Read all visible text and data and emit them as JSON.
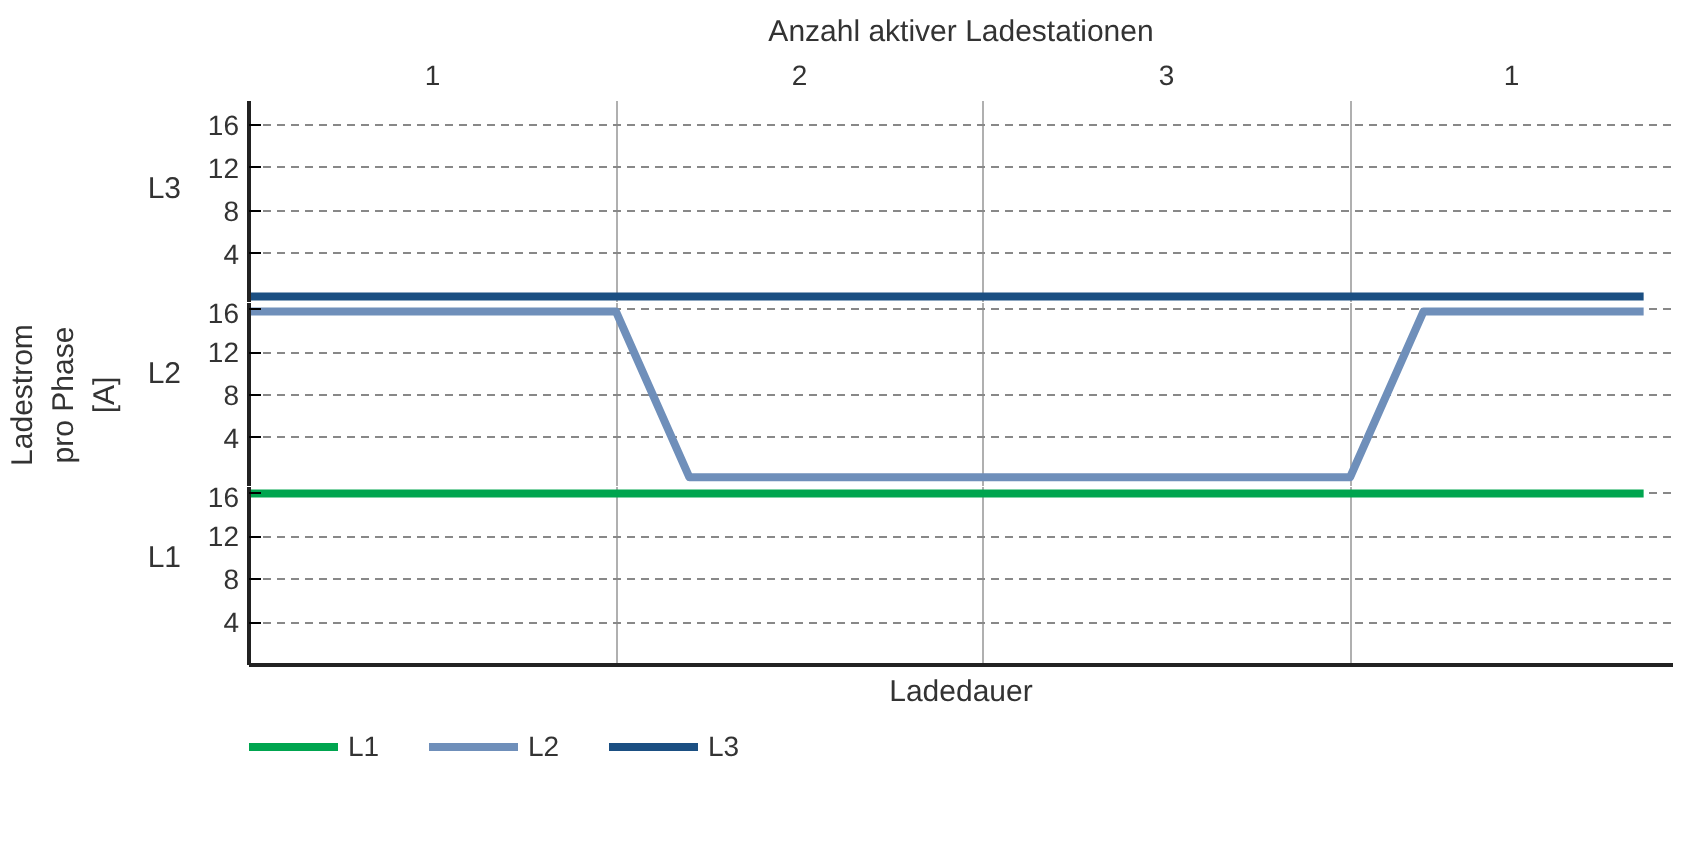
{
  "chart_data": [
    {
      "type": "line",
      "title": "Anzahl aktiver Ladestationen",
      "ylabel": "L3",
      "annotations": [
        "1",
        "2",
        "3",
        "1"
      ],
      "categories": [
        null,
        null,
        null,
        null,
        null,
        null,
        null,
        null,
        null,
        null,
        null,
        null,
        null,
        null,
        null,
        null,
        null,
        null,
        null,
        null
      ],
      "ylim": [
        -0.6,
        18.2
      ],
      "yticks": [
        4,
        8,
        12,
        16
      ],
      "tick_labels": "y",
      "grid": true,
      "line_style": "solid",
      "series": [
        {
          "name": "L3",
          "color": "#1b4f82",
          "values": [
            0,
            0,
            0,
            0,
            0,
            0,
            0,
            0,
            0,
            0,
            0,
            0,
            0,
            0,
            0,
            0,
            0,
            0,
            0,
            0
          ]
        }
      ]
    },
    {
      "type": "line",
      "ylabel": "L2",
      "annotations": [
        "Ladestrom pro Phase [A]"
      ],
      "categories": [
        null,
        null,
        null,
        null,
        null,
        null,
        null,
        null,
        null,
        null,
        null,
        null,
        null,
        null,
        null,
        null,
        null,
        null,
        null,
        null
      ],
      "ylim": [
        -0.6,
        16.6
      ],
      "yticks": [
        4,
        8,
        12,
        16
      ],
      "tick_labels": "y",
      "grid": true,
      "line_style": "solid",
      "series": [
        {
          "name": "L2",
          "color": "#6f8fba",
          "values": [
            15.8,
            15.8,
            15.8,
            15.8,
            15.8,
            15.8,
            0.3,
            0.3,
            0.3,
            0.3,
            0.3,
            0.3,
            0.3,
            0.3,
            0.3,
            0.3,
            15.8,
            15.8,
            15.8,
            15.8
          ]
        }
      ]
    },
    {
      "type": "line",
      "ylabel": "L1",
      "xlabel": "Ladedauer",
      "categories": [
        null,
        null,
        null,
        null,
        null,
        null,
        null,
        null,
        null,
        null,
        null,
        null,
        null,
        null,
        null,
        null,
        null,
        null,
        null,
        null
      ],
      "ylim": [
        0,
        16.6
      ],
      "yticks": [
        4,
        8,
        12,
        16
      ],
      "tick_labels": "y",
      "grid": true,
      "legend": "bottom left",
      "line_style": "solid",
      "series": [
        {
          "name": "L1",
          "color": "#00a54f",
          "values": [
            16,
            16,
            16,
            16,
            16,
            16,
            16,
            16,
            16,
            16,
            16,
            16,
            16,
            16,
            16,
            16,
            16,
            16,
            16,
            16
          ]
        }
      ]
    }
  ]
}
